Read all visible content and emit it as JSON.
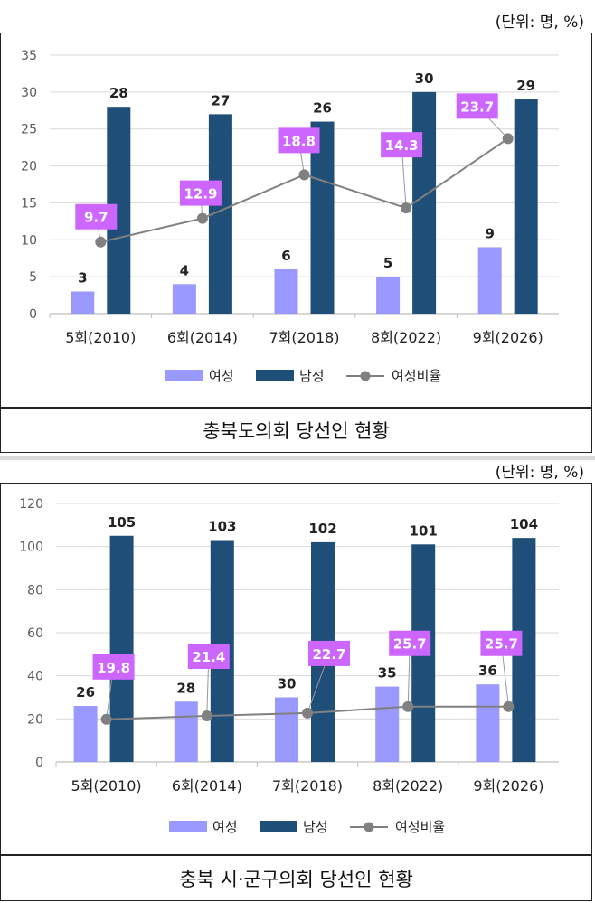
{
  "chart_data": [
    {
      "type": "bar",
      "title": "충북도의회 당선인 현황",
      "unit_note": "(단위: 명, %)",
      "categories": [
        "5회(2010)",
        "6회(2014)",
        "7회(2018)",
        "8회(2022)",
        "9회(2026)"
      ],
      "series": [
        {
          "name": "여성",
          "type": "bar",
          "color": "#9999ff",
          "values": [
            3,
            4,
            6,
            5,
            9
          ]
        },
        {
          "name": "남성",
          "type": "bar",
          "color": "#1f4e79",
          "values": [
            28,
            27,
            26,
            30,
            29
          ]
        },
        {
          "name": "여성비율",
          "type": "line",
          "color": "#808080",
          "values": [
            9.7,
            12.9,
            18.8,
            14.3,
            23.7
          ]
        }
      ],
      "ylim": [
        0,
        35
      ],
      "yticks": [
        0,
        5,
        10,
        15,
        20,
        25,
        30,
        35
      ],
      "grid": true,
      "legend_position": "bottom"
    },
    {
      "type": "bar",
      "title": "충북 시·군구의회 당선인 현황",
      "unit_note": "(단위: 명, %)",
      "categories": [
        "5회(2010)",
        "6회(2014)",
        "7회(2018)",
        "8회(2022)",
        "9회(2026)"
      ],
      "series": [
        {
          "name": "여성",
          "type": "bar",
          "color": "#9999ff",
          "values": [
            26,
            28,
            30,
            35,
            36
          ]
        },
        {
          "name": "남성",
          "type": "bar",
          "color": "#1f4e79",
          "values": [
            105,
            103,
            102,
            101,
            104
          ]
        },
        {
          "name": "여성비율",
          "type": "line",
          "color": "#808080",
          "values": [
            19.8,
            21.4,
            22.7,
            25.7,
            25.7
          ]
        }
      ],
      "ylim": [
        0,
        120
      ],
      "yticks": [
        0,
        20,
        40,
        60,
        80,
        100,
        120
      ],
      "grid": true,
      "legend_position": "bottom"
    }
  ],
  "colors": {
    "label_box": "#cc66ff",
    "label_text": "#ffffff",
    "gridline": "#d9d9d9",
    "axis_text": "#595959"
  }
}
